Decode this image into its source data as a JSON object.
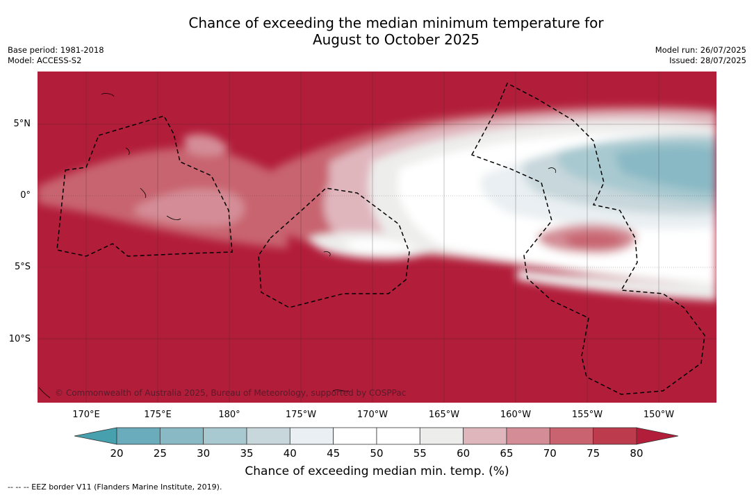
{
  "title_line1": "Chance of exceeding the median minimum temperature for",
  "title_line2": "August to October 2025",
  "meta_left": {
    "base_period": "Base period: 1981-2018",
    "model": "Model: ACCESS-S2"
  },
  "meta_right": {
    "model_run": "Model run: 26/07/2025",
    "issued": "Issued: 28/07/2025"
  },
  "map": {
    "lat_ticks": [
      "5°N",
      "0°",
      "5°S",
      "10°S"
    ],
    "lon_ticks": [
      "170°E",
      "175°E",
      "180°",
      "175°W",
      "170°W",
      "165°W",
      "160°W",
      "155°W",
      "150°W"
    ],
    "copyright": "© Commonwealth of Australia 2025, Bureau of Meteorology, supported by COSPPac"
  },
  "colorbar": {
    "levels": [
      "20",
      "25",
      "30",
      "35",
      "40",
      "45",
      "50",
      "55",
      "60",
      "65",
      "70",
      "75",
      "80"
    ],
    "colors": [
      "#46a0ae",
      "#6aacbb",
      "#89b9c5",
      "#a8c9d0",
      "#c7d7dc",
      "#e9eff2",
      "#ffffff",
      "#ffffff",
      "#ededec",
      "#e0b6bd",
      "#d48d96",
      "#c8636f",
      "#bc3c4d",
      "#b21d3a"
    ],
    "title": "Chance of exceeding median min. temp. (%)"
  },
  "footnote": "--  --  -- EEZ border V11 (Flanders Marine Institute, 2019)."
}
